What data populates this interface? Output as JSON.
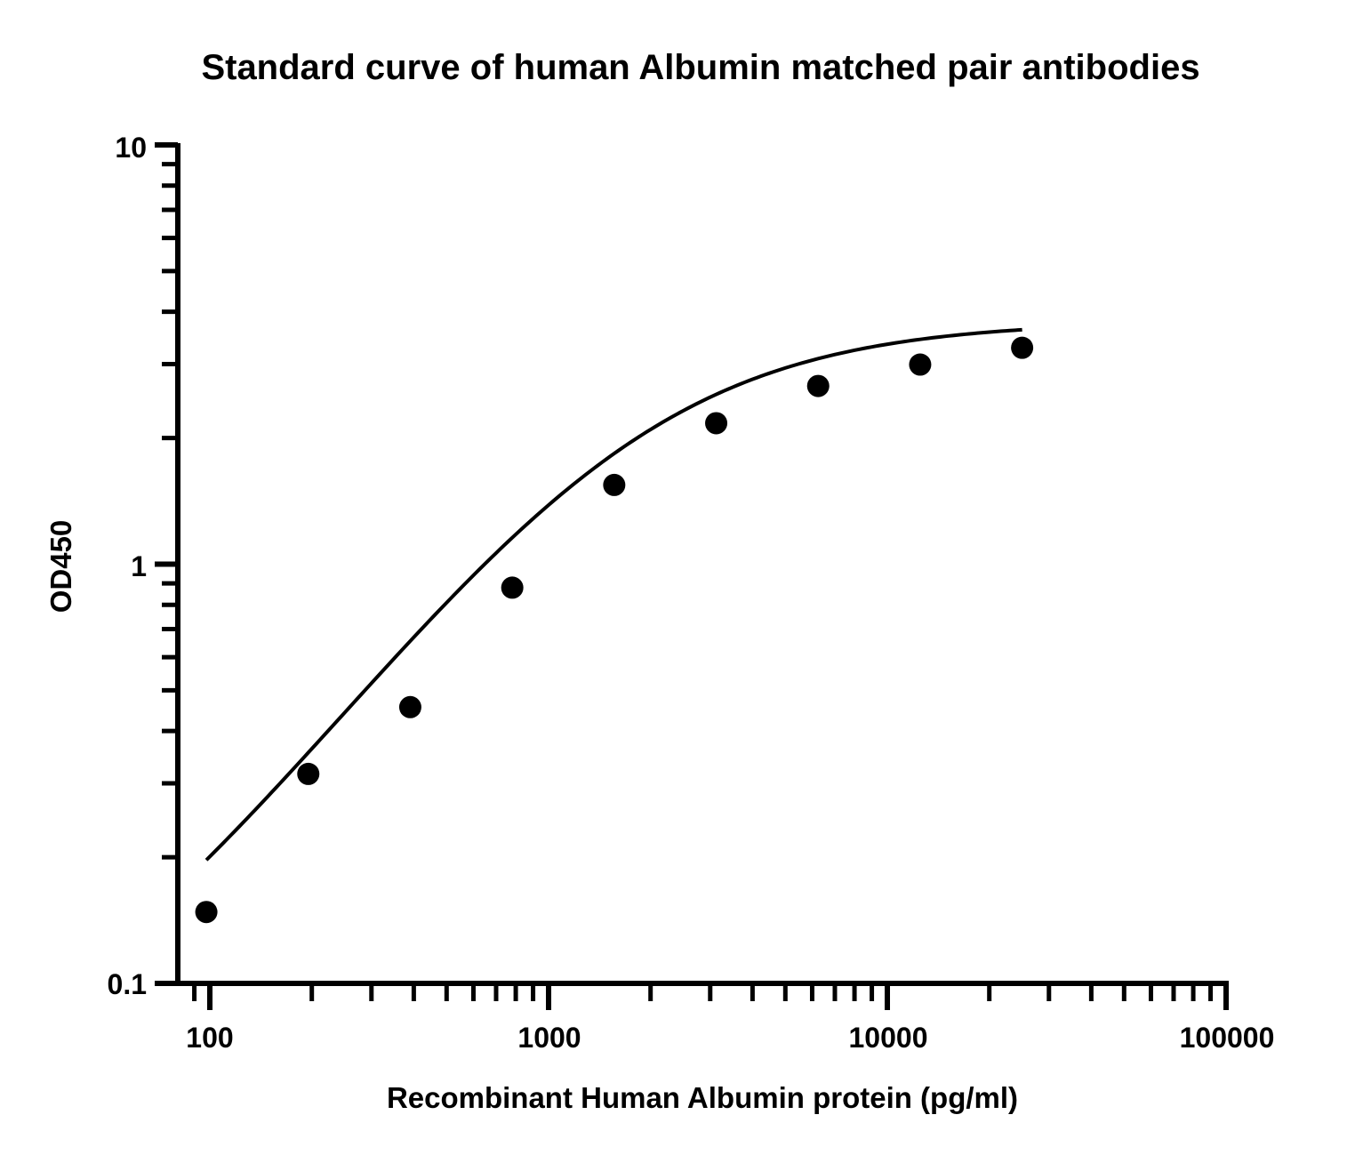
{
  "chart_data": {
    "type": "scatter",
    "title": "Standard curve of human Albumin matched pair antibodies",
    "xlabel": "Recombinant Human Albumin protein (pg/ml)",
    "ylabel": "OD450",
    "x_scale": "log",
    "y_scale": "log",
    "xlim": [
      84,
      100000
    ],
    "ylim": [
      0.1,
      10
    ],
    "x_ticks": [
      "100",
      "1000",
      "10000",
      "100000"
    ],
    "y_ticks": [
      "0.1",
      "1",
      "10"
    ],
    "grid": false,
    "legend": "none",
    "series": [
      {
        "x": [
          97.66,
          195.3,
          390.6,
          781.25,
          1562.5,
          3125,
          6250,
          12500,
          25000
        ],
        "y": [
          0.148,
          0.316,
          0.456,
          0.879,
          1.545,
          2.169,
          2.661,
          2.993,
          3.282
        ],
        "fit_curve": "four-parameter logistic"
      }
    ],
    "colors": {
      "marker": "#000000",
      "line": "#000000",
      "axis": "#000000"
    }
  }
}
